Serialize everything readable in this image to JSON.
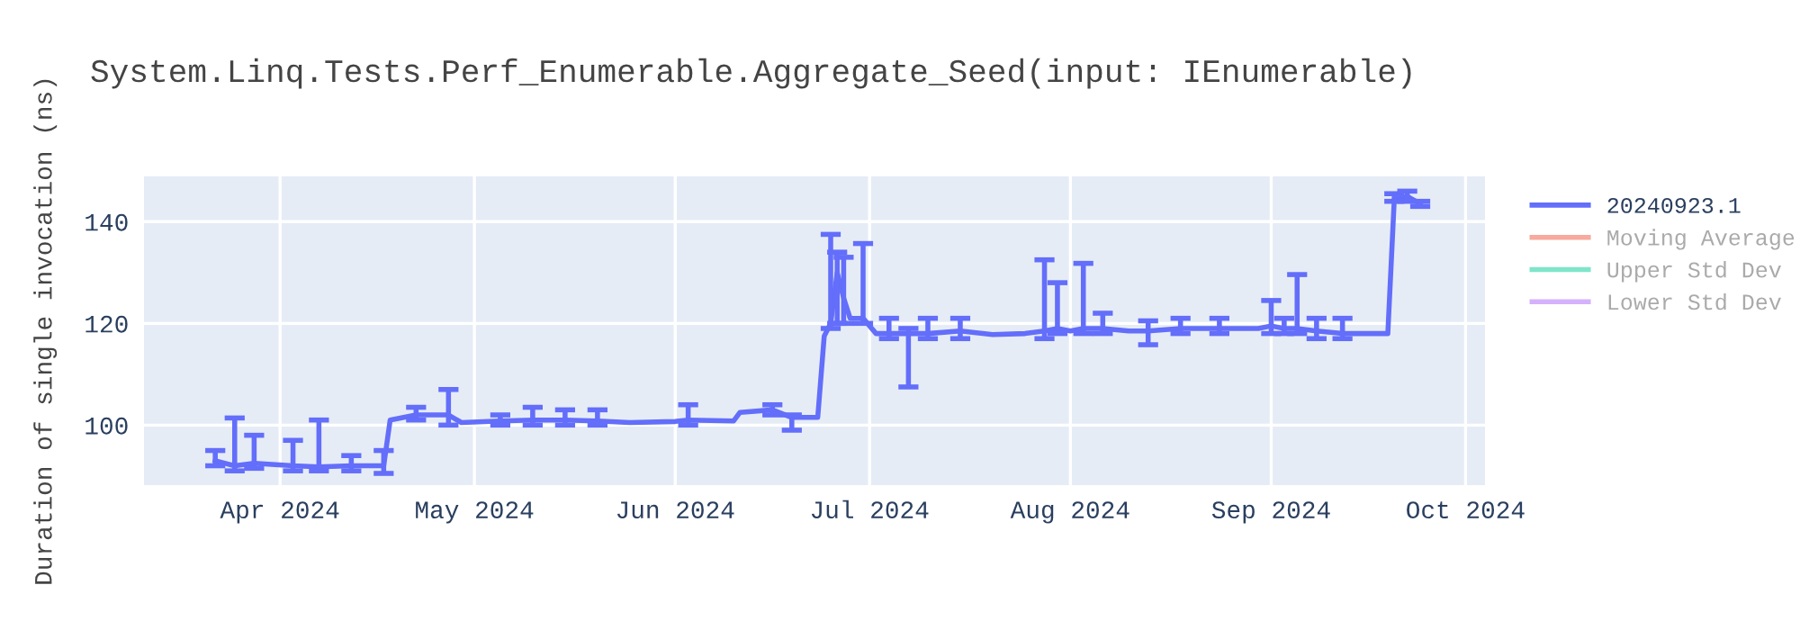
{
  "chart_data": {
    "type": "line",
    "title": "System.Linq.Tests.Perf_Enumerable.Aggregate_Seed(input: IEnumerable)",
    "ylabel": "Duration of single invocation (ns)",
    "x": [
      "2024-03-22",
      "2024-03-25",
      "2024-03-28",
      "2024-04-03",
      "2024-04-07",
      "2024-04-12",
      "2024-04-17",
      "2024-04-18",
      "2024-04-22",
      "2024-04-27",
      "2024-04-29",
      "2024-05-05",
      "2024-05-10",
      "2024-05-15",
      "2024-05-20",
      "2024-05-25",
      "2024-06-01",
      "2024-06-03",
      "2024-06-10",
      "2024-06-11",
      "2024-06-16",
      "2024-06-19",
      "2024-06-23",
      "2024-06-24",
      "2024-06-25",
      "2024-06-26",
      "2024-06-27",
      "2024-06-28",
      "2024-06-30",
      "2024-07-02",
      "2024-07-04",
      "2024-07-07",
      "2024-07-10",
      "2024-07-15",
      "2024-07-20",
      "2024-07-25",
      "2024-07-28",
      "2024-07-30",
      "2024-08-01",
      "2024-08-03",
      "2024-08-06",
      "2024-08-10",
      "2024-08-13",
      "2024-08-18",
      "2024-08-24",
      "2024-08-30",
      "2024-09-01",
      "2024-09-03",
      "2024-09-05",
      "2024-09-08",
      "2024-09-12",
      "2024-09-15",
      "2024-09-19",
      "2024-09-20",
      "2024-09-22",
      "2024-09-24"
    ],
    "series": [
      {
        "name": "20240923.1",
        "color": "#636efa",
        "values": [
          93,
          92,
          92.5,
          92,
          91.8,
          92,
          92,
          101,
          102,
          102,
          100.5,
          100.8,
          101,
          101,
          100.8,
          100.5,
          100.7,
          101,
          100.8,
          102.5,
          103,
          101.5,
          101.5,
          117.5,
          120,
          130,
          125,
          121,
          121,
          118,
          118,
          118,
          118,
          118.5,
          117.8,
          118,
          118.5,
          119,
          118.5,
          119,
          119,
          118.5,
          118.5,
          119,
          119,
          119,
          119.5,
          119,
          119,
          118.5,
          118,
          118,
          118,
          144.5,
          145,
          143.5
        ],
        "errors": [
          [
            92,
            95
          ],
          [
            91,
            101.4
          ],
          [
            91.5,
            98
          ],
          [
            91,
            97
          ],
          [
            91,
            101
          ],
          [
            91,
            94
          ],
          [
            90.5,
            95
          ],
          null,
          [
            101,
            103.5
          ],
          [
            100,
            107
          ],
          null,
          [
            100,
            102
          ],
          [
            100,
            103.5
          ],
          [
            100,
            103
          ],
          [
            100,
            103
          ],
          null,
          null,
          [
            100,
            104
          ],
          null,
          null,
          [
            102,
            104
          ],
          [
            99,
            102
          ],
          null,
          null,
          [
            119,
            137.5
          ],
          [
            120,
            134
          ],
          [
            120,
            133
          ],
          null,
          [
            120,
            135.7
          ],
          null,
          [
            117,
            121
          ],
          [
            107.5,
            119
          ],
          [
            117,
            121
          ],
          [
            117,
            121
          ],
          null,
          null,
          [
            117,
            132.5
          ],
          [
            118,
            128
          ],
          null,
          [
            118,
            131.8
          ],
          [
            118,
            122
          ],
          null,
          [
            115.8,
            120.5
          ],
          [
            118,
            121
          ],
          [
            118,
            121
          ],
          null,
          [
            118,
            124.5
          ],
          [
            118,
            121
          ],
          [
            118,
            129.6
          ],
          [
            117,
            121
          ],
          [
            117,
            121
          ],
          null,
          null,
          [
            144,
            145.5
          ],
          [
            144,
            146
          ],
          [
            143,
            144
          ]
        ]
      },
      {
        "name": "Moving Average",
        "color": "#ef553b",
        "values": [
          null,
          null,
          null,
          null,
          null,
          null,
          null,
          null,
          null,
          null,
          null,
          null,
          null,
          null,
          null,
          null,
          null,
          null,
          null,
          null,
          null,
          null,
          null,
          null,
          null,
          null,
          null,
          null,
          null,
          null,
          null,
          null,
          null,
          null,
          null,
          null,
          null,
          null,
          null,
          null,
          null,
          null,
          null,
          null,
          null,
          null,
          null,
          null,
          null,
          null,
          null,
          null,
          null,
          null,
          null,
          null
        ]
      },
      {
        "name": "Upper Std Dev",
        "color": "#00cc96",
        "values": [
          null,
          null,
          null,
          null,
          null,
          null,
          null,
          null,
          null,
          null,
          null,
          null,
          null,
          null,
          null,
          null,
          null,
          null,
          null,
          null,
          null,
          null,
          null,
          null,
          null,
          null,
          null,
          null,
          null,
          null,
          null,
          null,
          null,
          null,
          null,
          null,
          null,
          null,
          null,
          null,
          null,
          null,
          null,
          null,
          null,
          null,
          null,
          null,
          null,
          null,
          null,
          null,
          null,
          null,
          null,
          null
        ]
      },
      {
        "name": "Lower Std Dev",
        "color": "#ab63fa",
        "values": [
          null,
          null,
          null,
          null,
          null,
          null,
          null,
          null,
          null,
          null,
          null,
          null,
          null,
          null,
          null,
          null,
          null,
          null,
          null,
          null,
          null,
          null,
          null,
          null,
          null,
          null,
          null,
          null,
          null,
          null,
          null,
          null,
          null,
          null,
          null,
          null,
          null,
          null,
          null,
          null,
          null,
          null,
          null,
          null,
          null,
          null,
          null,
          null,
          null,
          null,
          null,
          null,
          null,
          null,
          null,
          null
        ]
      }
    ],
    "xlim": [
      "2024-03-11",
      "2024-10-04"
    ],
    "xticks": [
      {
        "value": "2024-04-01",
        "label": "Apr 2024"
      },
      {
        "value": "2024-05-01",
        "label": "May 2024"
      },
      {
        "value": "2024-06-01",
        "label": "Jun 2024"
      },
      {
        "value": "2024-07-01",
        "label": "Jul 2024"
      },
      {
        "value": "2024-08-01",
        "label": "Aug 2024"
      },
      {
        "value": "2024-09-01",
        "label": "Sep 2024"
      },
      {
        "value": "2024-10-01",
        "label": "Oct 2024"
      }
    ],
    "ylim": [
      88.2,
      148.9
    ],
    "yticks": [
      100,
      120,
      140
    ],
    "grid": true,
    "legend": "right"
  }
}
